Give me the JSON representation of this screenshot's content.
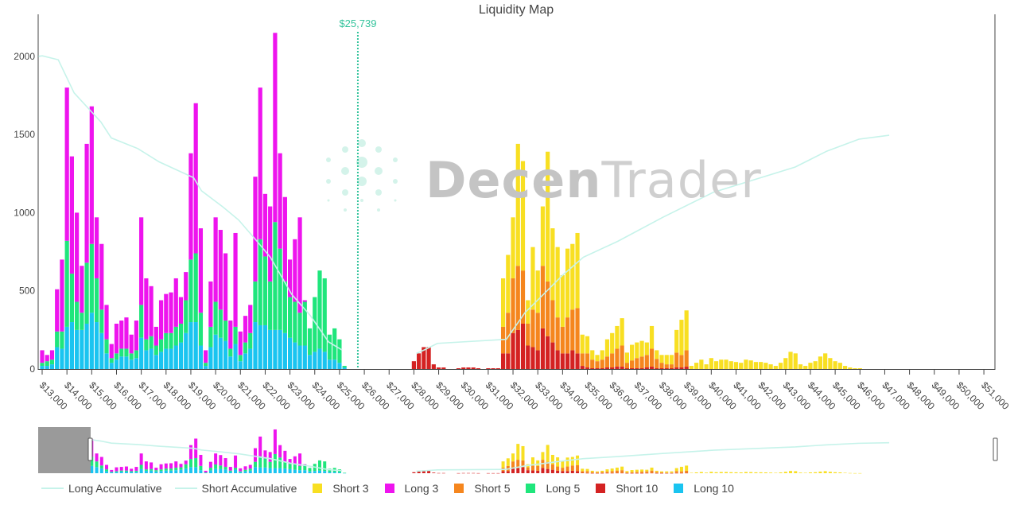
{
  "chart_data": {
    "type": "bar",
    "stacked": true,
    "title": "Liquidity Map",
    "current_price_label": "$25,739",
    "current_price": 25739,
    "watermark": {
      "bold": "Decen",
      "light": "Trader"
    },
    "y_ticks": [
      "0",
      "500",
      "1000",
      "1500",
      "2000"
    ],
    "y_tick_values": [
      0,
      500,
      1000,
      1500,
      2000
    ],
    "x_ticks": [
      "$13,000",
      "$14,000",
      "$15,000",
      "$16,000",
      "$17,000",
      "$18,000",
      "$19,000",
      "$20,000",
      "$21,000",
      "$22,000",
      "$23,000",
      "$24,000",
      "$25,000",
      "$26,000",
      "$27,000",
      "$28,000",
      "$29,000",
      "$30,000",
      "$31,000",
      "$32,000",
      "$33,000",
      "$34,000",
      "$35,000",
      "$36,000",
      "$37,000",
      "$38,000",
      "$39,000",
      "$40,000",
      "$41,000",
      "$42,000",
      "$43,000",
      "$44,000",
      "$45,000",
      "$46,000",
      "$47,000",
      "$48,000",
      "$49,000",
      "$50,000",
      "$51,000"
    ],
    "xlim": [
      12850,
      51400
    ],
    "ylim": [
      0,
      2260
    ],
    "grid": false,
    "legend_placement": "bottom",
    "colors": {
      "long_accumulative": "#c6f3ea",
      "short_accumulative": "#c6f3ea",
      "short3": "#f8df22",
      "long3": "#ee14ee",
      "short5": "#f5861e",
      "long5": "#1fe67c",
      "short10": "#d42222",
      "long10": "#1ac4f0",
      "current_price": "#34c49c"
    },
    "legend": [
      {
        "key": "long_accumulative",
        "label": "Long Accumulative",
        "kind": "line"
      },
      {
        "key": "short_accumulative",
        "label": "Short Accumulative",
        "kind": "line"
      },
      {
        "key": "short3",
        "label": "Short 3",
        "kind": "box"
      },
      {
        "key": "long3",
        "label": "Long 3",
        "kind": "box"
      },
      {
        "key": "short5",
        "label": "Short 5",
        "kind": "box"
      },
      {
        "key": "long5",
        "label": "Long 5",
        "kind": "box"
      },
      {
        "key": "short10",
        "label": "Short 10",
        "kind": "box"
      },
      {
        "key": "long10",
        "label": "Long 10",
        "kind": "box"
      }
    ],
    "long_bins": {
      "start": 13000,
      "step": 200,
      "long10": [
        20,
        20,
        30,
        140,
        130,
        270,
        300,
        250,
        250,
        290,
        360,
        300,
        230,
        100,
        40,
        60,
        80,
        80,
        60,
        70,
        200,
        120,
        130,
        90,
        110,
        130,
        130,
        150,
        170,
        230,
        300,
        300,
        150,
        20,
        140,
        220,
        200,
        180,
        80,
        160,
        50,
        100,
        130,
        300,
        280,
        280,
        250,
        250,
        250,
        230,
        200,
        170,
        150,
        150,
        90,
        110,
        130,
        110,
        60,
        60,
        40,
        10
      ],
      "long5": [
        20,
        30,
        30,
        100,
        110,
        550,
        310,
        180,
        110,
        390,
        440,
        280,
        150,
        90,
        30,
        40,
        50,
        50,
        40,
        50,
        210,
        70,
        80,
        60,
        80,
        100,
        100,
        120,
        120,
        210,
        400,
        440,
        210,
        20,
        130,
        210,
        180,
        130,
        50,
        110,
        40,
        70,
        100,
        260,
        550,
        440,
        310,
        690,
        520,
        330,
        260,
        260,
        210,
        280,
        170,
        350,
        500,
        470,
        160,
        200,
        150,
        10
      ],
      "long3": [
        80,
        40,
        60,
        270,
        460,
        980,
        750,
        570,
        300,
        760,
        880,
        390,
        420,
        220,
        90,
        190,
        180,
        200,
        120,
        190,
        560,
        390,
        320,
        120,
        250,
        250,
        260,
        310,
        170,
        180,
        680,
        960,
        540,
        80,
        290,
        540,
        510,
        430,
        180,
        600,
        150,
        170,
        180,
        670,
        970,
        400,
        480,
        1210,
        610,
        540,
        240,
        400,
        610,
        10,
        0,
        0,
        0,
        0,
        0,
        0,
        0,
        0
      ]
    },
    "short_bins": {
      "start": 28000,
      "step": 200,
      "short10": [
        50,
        100,
        140,
        140,
        30,
        10,
        10,
        0,
        0,
        5,
        10,
        10,
        10,
        5,
        0,
        5,
        5,
        5,
        100,
        100,
        230,
        250,
        290,
        150,
        140,
        120,
        260,
        210,
        170,
        120,
        100,
        100,
        120,
        100,
        20,
        10,
        5,
        5,
        5,
        10,
        10,
        15,
        15,
        5,
        5,
        5,
        5,
        10,
        15,
        5,
        5,
        5,
        5,
        10,
        10,
        15,
        0
      ],
      "short5": [
        0,
        0,
        0,
        0,
        0,
        0,
        0,
        0,
        0,
        0,
        0,
        0,
        0,
        0,
        0,
        0,
        0,
        0,
        170,
        260,
        350,
        410,
        340,
        140,
        240,
        240,
        400,
        350,
        270,
        210,
        170,
        230,
        260,
        290,
        80,
        90,
        55,
        45,
        55,
        70,
        90,
        115,
        135,
        35,
        50,
        65,
        75,
        80,
        115,
        60,
        35,
        25,
        25,
        95,
        80,
        105,
        0
      ],
      "short3": [
        0,
        0,
        0,
        0,
        0,
        0,
        0,
        0,
        0,
        0,
        0,
        0,
        0,
        0,
        0,
        0,
        0,
        0,
        310,
        370,
        390,
        780,
        700,
        150,
        400,
        270,
        380,
        830,
        460,
        450,
        330,
        440,
        420,
        480,
        120,
        110,
        60,
        40,
        60,
        110,
        130,
        145,
        175,
        65,
        100,
        100,
        100,
        80,
        145,
        55,
        50,
        60,
        60,
        145,
        225,
        255,
        20,
        40,
        60,
        30,
        70,
        50,
        60,
        60,
        50,
        45,
        40,
        60,
        55,
        45,
        45,
        40,
        30,
        20,
        40,
        70,
        110,
        100,
        30,
        20,
        40,
        50,
        80,
        100,
        70,
        50,
        40,
        20,
        10,
        5,
        5
      ]
    },
    "long_accumulative": {
      "x": [
        12850,
        13010,
        13650,
        14290,
        15370,
        15790,
        16860,
        17720,
        19110,
        19430,
        20290,
        20930,
        21670,
        22210,
        23070,
        23820,
        24560,
        25100
      ],
      "y": [
        2000,
        2003,
        1978,
        1766,
        1580,
        1478,
        1410,
        1325,
        1224,
        1140,
        1037,
        953,
        817,
        715,
        478,
        342,
        173,
        122
      ]
    },
    "short_accumulative": {
      "x": [
        28100,
        28420,
        28950,
        31730,
        32480,
        33340,
        33980,
        34840,
        36230,
        38040,
        40080,
        43390,
        44670,
        45960,
        47180
      ],
      "y": [
        100,
        122,
        164,
        190,
        360,
        495,
        597,
        715,
        817,
        970,
        1130,
        1292,
        1394,
        1470,
        1495
      ]
    }
  }
}
